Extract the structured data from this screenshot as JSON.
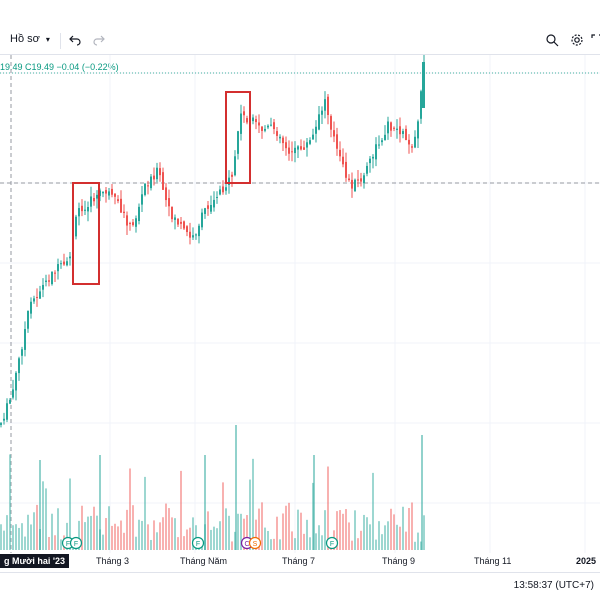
{
  "toolbar": {
    "profile_label": "Hồ sơ",
    "undo_icon": "undo-icon",
    "redo_icon": "redo-icon",
    "screenshot_icon": "camera-search-icon",
    "settings_icon": "gear-icon",
    "fullscreen_icon": "fullscreen-icon"
  },
  "legend": {
    "text": "19.49  C19.49  −0.04 (−0.22%)"
  },
  "x_axis": {
    "highlight": "g Mười hai '23",
    "labels": [
      "Tháng 3",
      "Tháng Năm",
      "Tháng 7",
      "Tháng 9",
      "Tháng 11",
      "2025"
    ]
  },
  "markers": [
    "F",
    "F",
    "F",
    "C",
    "S",
    "F"
  ],
  "status": {
    "clock": "13:58:37 (UTC+7)"
  },
  "colors": {
    "up": "#26a69a",
    "down": "#ef5350",
    "highlight_box": "#d32f2f",
    "legend": "#089981"
  },
  "chart_data": {
    "type": "candlestick",
    "title": "",
    "x_labels": [
      "Tháng 3",
      "Tháng Năm",
      "Tháng 7",
      "Tháng 9",
      "Tháng 11",
      "2025"
    ],
    "last_close": 19.49,
    "change": -0.04,
    "change_pct": -0.22
  }
}
